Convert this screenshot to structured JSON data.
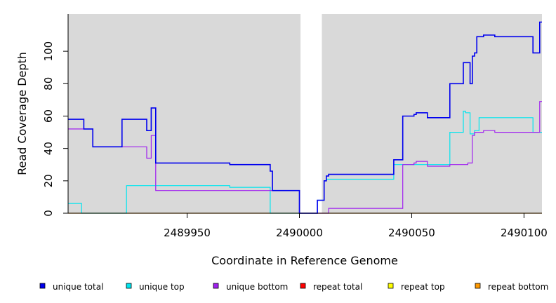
{
  "chart_data": {
    "type": "line",
    "xlabel": "Coordinate in Reference Genome",
    "ylabel": "Read Coverage Depth",
    "xlim": [
      2489897,
      2490108
    ],
    "ylim": [
      0,
      123
    ],
    "x_ticks": [
      2489950,
      2490000,
      2490050,
      2490100
    ],
    "x_tick_labels": [
      "2489950",
      "2490000",
      "2490050",
      "2490100"
    ],
    "y_ticks": [
      0,
      20,
      40,
      60,
      80,
      100
    ],
    "y_tick_labels": [
      "0",
      "20",
      "40",
      "60",
      "80",
      "100"
    ],
    "plot_background": "#d9d9d9",
    "gap_region": [
      2490000.5,
      2490010
    ],
    "gap_color": "#ffffff",
    "grid": false,
    "legend_position": "bottom",
    "series": [
      {
        "name": "unique total",
        "color": "#0000ee",
        "step": [
          [
            2489897,
            58
          ],
          [
            2489904,
            52
          ],
          [
            2489908,
            41
          ],
          [
            2489921,
            58
          ],
          [
            2489932,
            51
          ],
          [
            2489934,
            65
          ],
          [
            2489936,
            31
          ],
          [
            2489969,
            30
          ],
          [
            2489987,
            26
          ],
          [
            2489988,
            14
          ],
          [
            2490000,
            0
          ],
          [
            2490008,
            8
          ],
          [
            2490011,
            20
          ],
          [
            2490012,
            23
          ],
          [
            2490013,
            24
          ],
          [
            2490042,
            33
          ],
          [
            2490046,
            60
          ],
          [
            2490051,
            61
          ],
          [
            2490052,
            62
          ],
          [
            2490057,
            59
          ],
          [
            2490067,
            80
          ],
          [
            2490073,
            93
          ],
          [
            2490076,
            80
          ],
          [
            2490077,
            97
          ],
          [
            2490078,
            99
          ],
          [
            2490079,
            109
          ],
          [
            2490082,
            110
          ],
          [
            2490087,
            109
          ],
          [
            2490104,
            99
          ],
          [
            2490107,
            118
          ],
          [
            2490108,
            118
          ]
        ]
      },
      {
        "name": "unique top",
        "color": "#00e5ee",
        "step": [
          [
            2489897,
            6
          ],
          [
            2489903,
            0
          ],
          [
            2489923,
            17
          ],
          [
            2489969,
            16
          ],
          [
            2489987,
            0
          ],
          [
            2490008,
            8
          ],
          [
            2490011,
            20
          ],
          [
            2490012,
            21
          ],
          [
            2490042,
            30
          ],
          [
            2490046,
            30
          ],
          [
            2490057,
            30
          ],
          [
            2490067,
            50
          ],
          [
            2490073,
            63
          ],
          [
            2490074,
            62
          ],
          [
            2490076,
            49
          ],
          [
            2490078,
            51
          ],
          [
            2490080,
            59
          ],
          [
            2490104,
            50
          ],
          [
            2490108,
            50
          ]
        ]
      },
      {
        "name": "unique bottom",
        "color": "#a020f0",
        "step": [
          [
            2489897,
            52
          ],
          [
            2489904,
            52
          ],
          [
            2489908,
            41
          ],
          [
            2489932,
            34
          ],
          [
            2489934,
            48
          ],
          [
            2489936,
            14
          ],
          [
            2489988,
            14
          ],
          [
            2490000,
            0
          ],
          [
            2490013,
            3
          ],
          [
            2490046,
            30
          ],
          [
            2490051,
            31
          ],
          [
            2490052,
            32
          ],
          [
            2490057,
            29
          ],
          [
            2490067,
            30
          ],
          [
            2490075,
            31
          ],
          [
            2490077,
            48
          ],
          [
            2490078,
            50
          ],
          [
            2490082,
            51
          ],
          [
            2490087,
            50
          ],
          [
            2490107,
            69
          ],
          [
            2490108,
            69
          ]
        ]
      },
      {
        "name": "repeat total",
        "color": "#ff0000",
        "step": []
      },
      {
        "name": "repeat top",
        "color": "#ffff00",
        "step": []
      },
      {
        "name": "repeat bottom",
        "color": "#ff9900",
        "step": [
          [
            2489897,
            0
          ],
          [
            2490108,
            0
          ]
        ]
      }
    ]
  }
}
